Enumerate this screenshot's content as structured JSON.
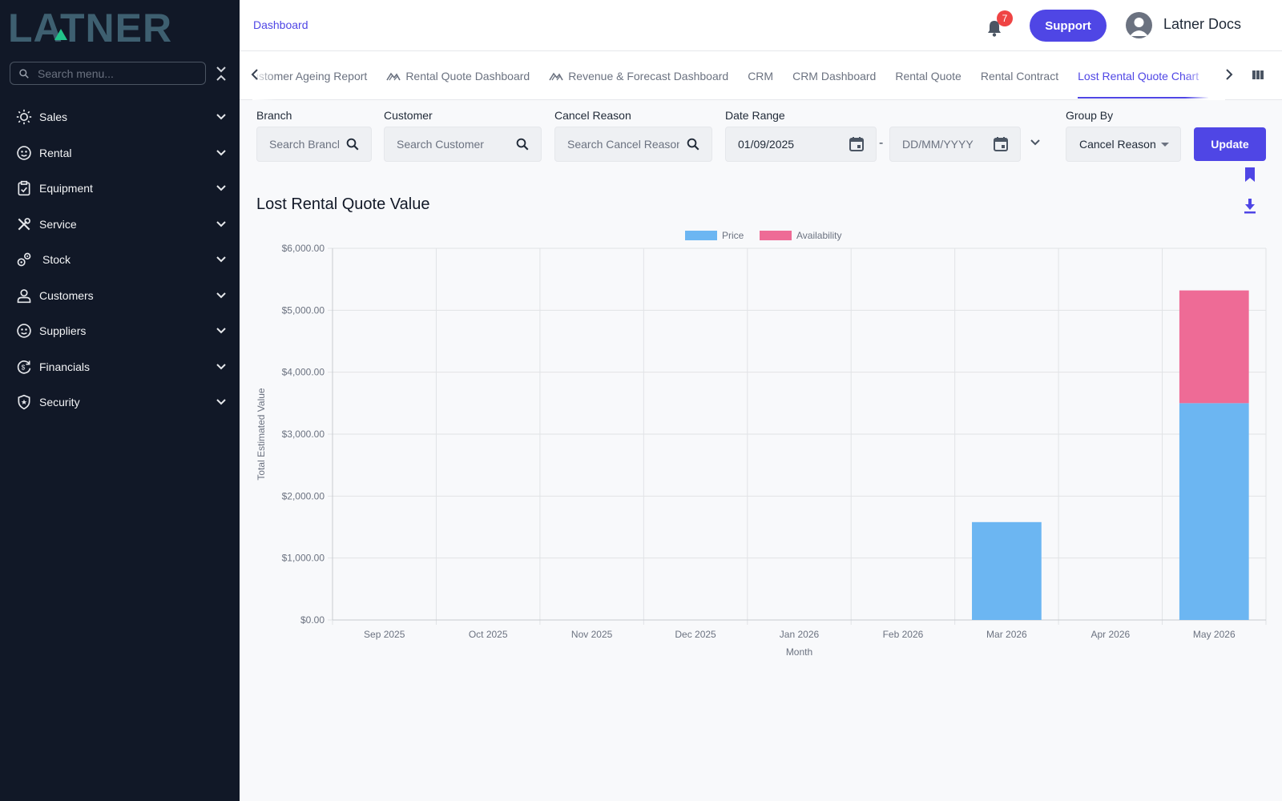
{
  "app": {
    "logo_text": "LATNER"
  },
  "sidebar": {
    "search_placeholder": "Search menu...",
    "items": [
      {
        "label": "Sales",
        "icon": "sales-icon"
      },
      {
        "label": "Rental",
        "icon": "rental-icon"
      },
      {
        "label": "Equipment",
        "icon": "equipment-icon"
      },
      {
        "label": "Service",
        "icon": "service-icon"
      },
      {
        "label": "Stock",
        "icon": "stock-icon"
      },
      {
        "label": "Customers",
        "icon": "customers-icon"
      },
      {
        "label": "Suppliers",
        "icon": "suppliers-icon"
      },
      {
        "label": "Financials",
        "icon": "financials-icon"
      },
      {
        "label": "Security",
        "icon": "security-icon"
      }
    ]
  },
  "header": {
    "breadcrumb": "Dashboard",
    "notifications_count": "7",
    "support_label": "Support",
    "user_name": "Latner Docs"
  },
  "tabs": [
    {
      "label": "Customer Ageing Report",
      "icon": ""
    },
    {
      "label": "Rental Quote Dashboard",
      "icon": "dashboard-icon"
    },
    {
      "label": "Revenue & Forecast Dashboard",
      "icon": "dashboard-icon"
    },
    {
      "label": "CRM",
      "icon": ""
    },
    {
      "label": "CRM Dashboard",
      "icon": ""
    },
    {
      "label": "Rental Quote",
      "icon": ""
    },
    {
      "label": "Rental Contract",
      "icon": ""
    },
    {
      "label": "Lost Rental Quote Chart",
      "icon": "",
      "active": true
    }
  ],
  "filters": {
    "branch": {
      "label": "Branch",
      "placeholder": "Search Branch"
    },
    "customer": {
      "label": "Customer",
      "placeholder": "Search Customer"
    },
    "cancel_reason": {
      "label": "Cancel Reason",
      "placeholder": "Search Cancel Reason"
    },
    "date_range": {
      "label": "Date Range",
      "from_value": "01/09/2025",
      "to_placeholder": "DD/MM/YYYY",
      "separator": "-"
    },
    "group_by": {
      "label": "Group By",
      "value": "Cancel Reason"
    },
    "update_label": "Update"
  },
  "colors": {
    "accent": "#4f46e5",
    "price": "#6cb6f2",
    "availability": "#ee6b96",
    "sidebar_bg": "#111827"
  },
  "chart_data": {
    "type": "bar",
    "stacked": true,
    "title": "Lost Rental Quote Value",
    "xlabel": "Month",
    "ylabel": "Total Estimated Value",
    "categories": [
      "Sep 2025",
      "Oct 2025",
      "Nov 2025",
      "Dec 2025",
      "Jan 2026",
      "Feb 2026",
      "Mar 2026",
      "Apr 2026",
      "May 2026"
    ],
    "series": [
      {
        "name": "Price",
        "color": "#6cb6f2",
        "values": [
          0,
          0,
          0,
          0,
          0,
          0,
          1580,
          0,
          3500
        ]
      },
      {
        "name": "Availability",
        "color": "#ee6b96",
        "values": [
          0,
          0,
          0,
          0,
          0,
          0,
          0,
          0,
          1820
        ]
      }
    ],
    "ylim": [
      0,
      6000
    ],
    "yticks": [
      0,
      1000,
      2000,
      3000,
      4000,
      5000,
      6000
    ],
    "ytick_labels": [
      "$0.00",
      "$1,000.00",
      "$2,000.00",
      "$3,000.00",
      "$4,000.00",
      "$5,000.00",
      "$6,000.00"
    ],
    "grid": true,
    "legend_position": "top-center"
  }
}
